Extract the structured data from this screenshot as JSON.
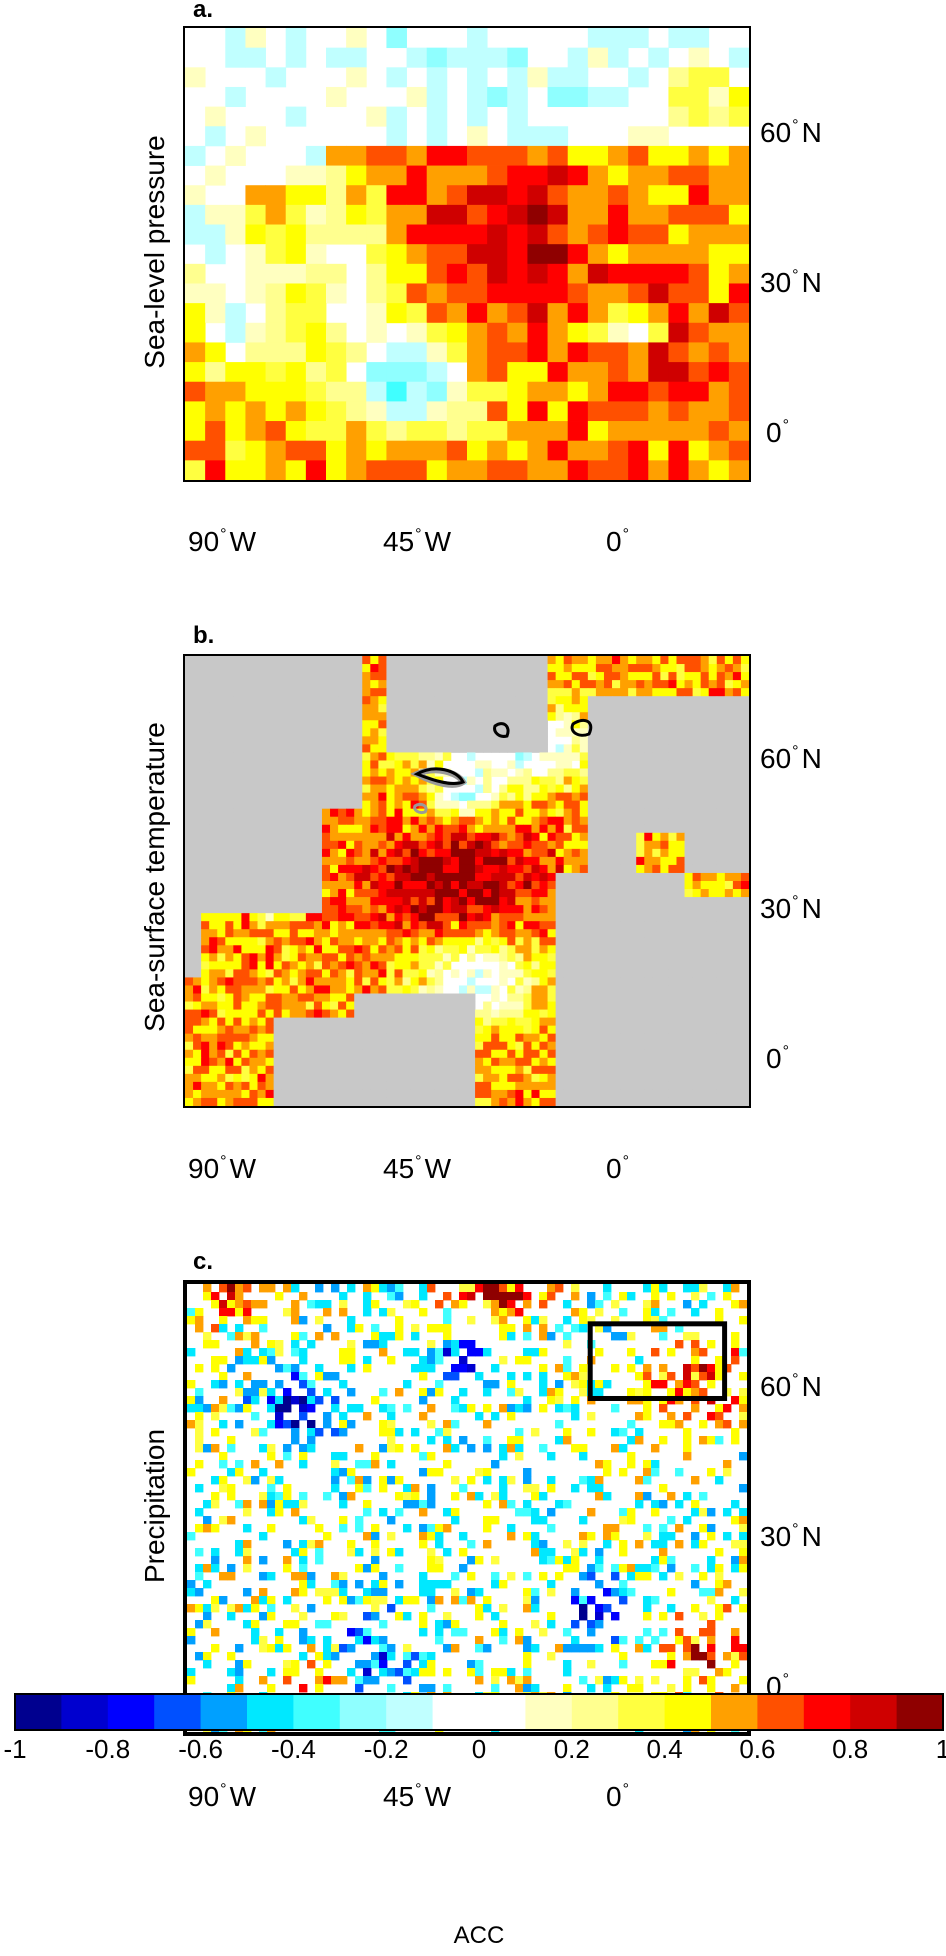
{
  "panels": [
    {
      "letter": "a.",
      "ylabel": "Sea-level pressure",
      "field": "slp"
    },
    {
      "letter": "b.",
      "ylabel": "Sea-surface temperature",
      "field": "sst"
    },
    {
      "letter": "c.",
      "ylabel": "Precipitation",
      "field": "precip"
    }
  ],
  "lon_ticks": [
    {
      "value": "90",
      "hemi": "W"
    },
    {
      "value": "45",
      "hemi": "W"
    },
    {
      "value": "0",
      "hemi": ""
    }
  ],
  "lat_ticks": [
    {
      "value": "60",
      "hemi": "N"
    },
    {
      "value": "30",
      "hemi": "N"
    },
    {
      "value": "0",
      "hemi": ""
    }
  ],
  "colorbar": {
    "label": "ACC",
    "range": [
      -1,
      1
    ],
    "ticks": [
      "-1",
      "-0.8",
      "-0.6",
      "-0.4",
      "-0.2",
      "0",
      "0.2",
      "0.4",
      "0.6",
      "0.8",
      "1"
    ],
    "colors": [
      "#00008f",
      "#0000cf",
      "#0000ff",
      "#0050ff",
      "#00a0ff",
      "#00e8ff",
      "#40ffff",
      "#8fffff",
      "#c0ffff",
      "#ffffff",
      "#ffffff",
      "#ffffc0",
      "#ffff8f",
      "#ffff40",
      "#ffff00",
      "#ffa000",
      "#ff5000",
      "#ff0000",
      "#cf0000",
      "#8f0000"
    ]
  },
  "map_extent": {
    "lon": [
      -100,
      25
    ],
    "lat": [
      -10,
      80
    ]
  },
  "land_color": "#c8c8c8",
  "highlight_box": {
    "lon": [
      -10,
      20
    ],
    "lat": [
      57,
      72
    ]
  }
}
